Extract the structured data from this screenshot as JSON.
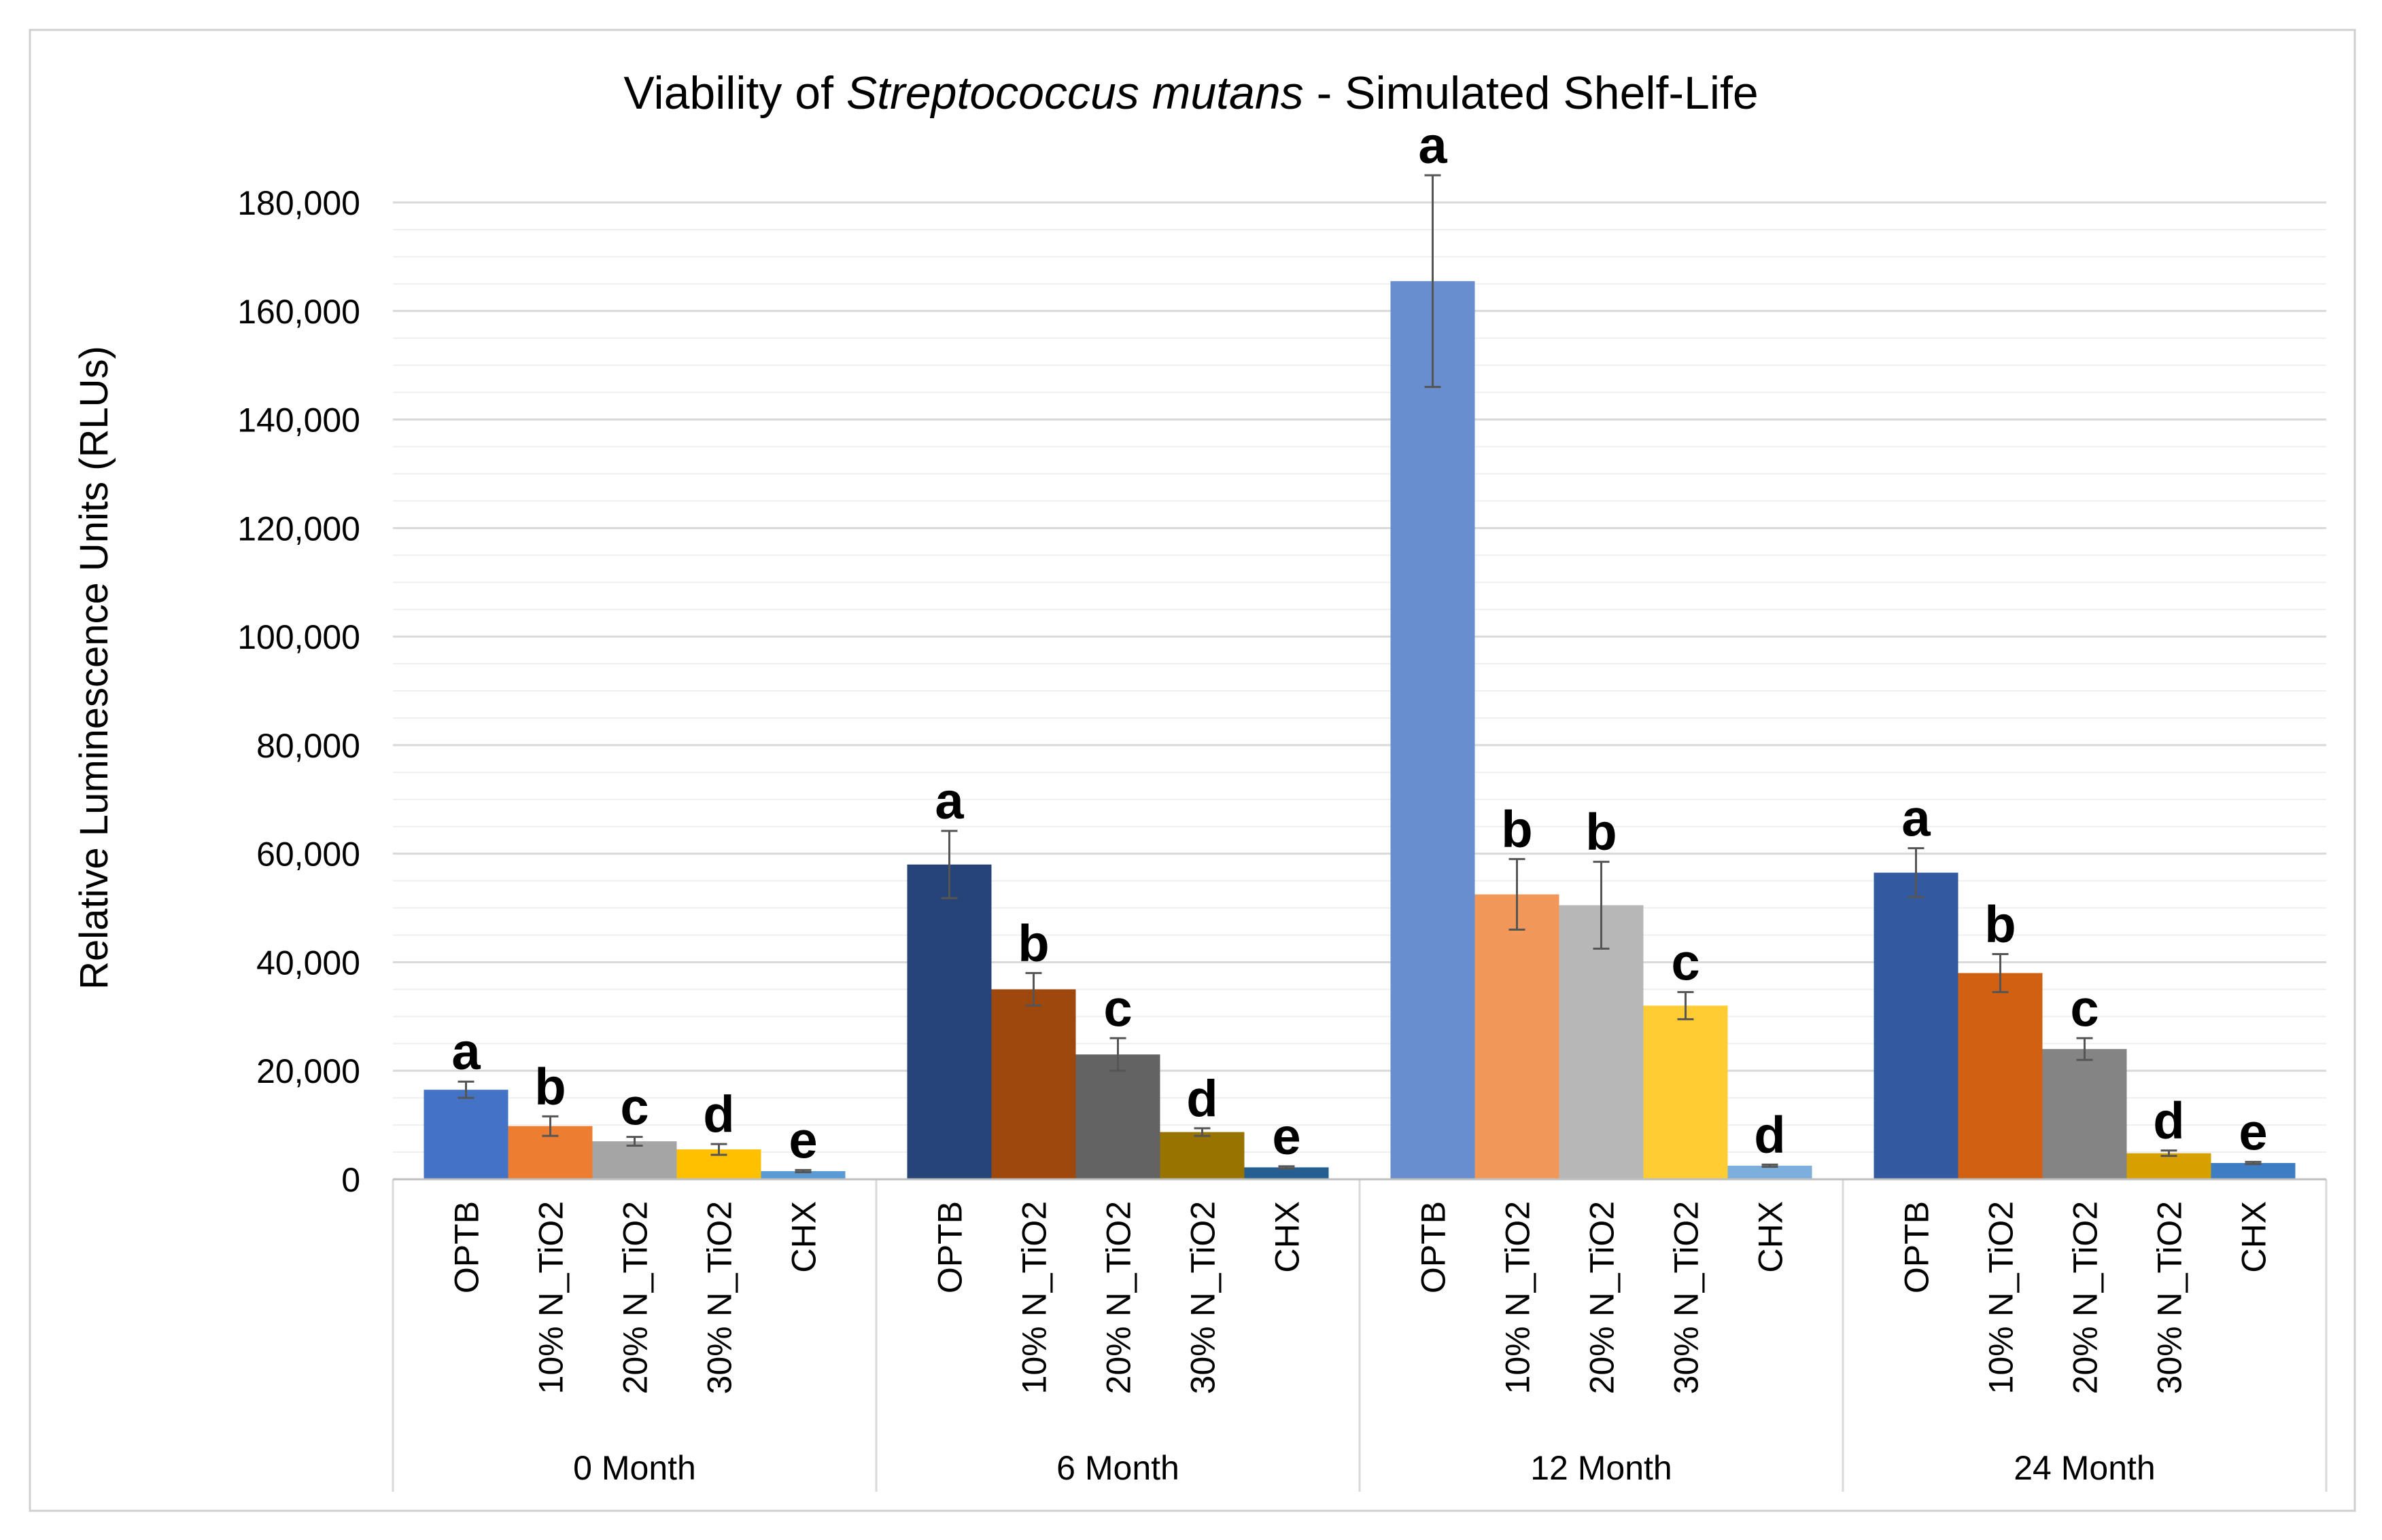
{
  "chart_data": {
    "type": "bar",
    "title": {
      "prefix": "Viability of ",
      "italic": "Streptococcus mutans",
      "suffix": " - Simulated Shelf-Life"
    },
    "ylabel": "Relative Luminescence Units (RLUs)",
    "xlabel": "",
    "ylim": [
      0,
      180000
    ],
    "yticks": [
      0,
      20000,
      40000,
      60000,
      80000,
      100000,
      120000,
      140000,
      160000,
      180000
    ],
    "ytick_labels": [
      "0",
      "20,000",
      "40,000",
      "60,000",
      "80,000",
      "100,000",
      "120,000",
      "140,000",
      "160,000",
      "180,000"
    ],
    "grid": true,
    "legend": "none",
    "groups": [
      {
        "label": "0 Month",
        "bars": [
          {
            "category": "OPTB",
            "value": 16500,
            "error": 1500,
            "letter": "a",
            "color": "#4472C4"
          },
          {
            "category": "10% N_TiO2",
            "value": 9800,
            "error": 1800,
            "letter": "b",
            "color": "#ED7D31"
          },
          {
            "category": "20% N_TiO2",
            "value": 7000,
            "error": 800,
            "letter": "c",
            "color": "#A5A5A5"
          },
          {
            "category": "30% N_TiO2",
            "value": 5500,
            "error": 1000,
            "letter": "d",
            "color": "#FFC000"
          },
          {
            "category": "CHX",
            "value": 1500,
            "error": 200,
            "letter": "e",
            "color": "#5B9BD5"
          }
        ]
      },
      {
        "label": "6 Month",
        "bars": [
          {
            "category": "OPTB",
            "value": 58000,
            "error": 6200,
            "letter": "a",
            "color": "#264478"
          },
          {
            "category": "10% N_TiO2",
            "value": 35000,
            "error": 3000,
            "letter": "b",
            "color": "#9E480E"
          },
          {
            "category": "20% N_TiO2",
            "value": 23000,
            "error": 3000,
            "letter": "c",
            "color": "#636363"
          },
          {
            "category": "30% N_TiO2",
            "value": 8700,
            "error": 700,
            "letter": "d",
            "color": "#997300"
          },
          {
            "category": "CHX",
            "value": 2200,
            "error": 200,
            "letter": "e",
            "color": "#255E91"
          }
        ]
      },
      {
        "label": "12 Month",
        "bars": [
          {
            "category": "OPTB",
            "value": 165500,
            "error": 19500,
            "letter": "a",
            "color": "#698ED0"
          },
          {
            "category": "10% N_TiO2",
            "value": 52500,
            "error": 6500,
            "letter": "b",
            "color": "#F1975A"
          },
          {
            "category": "20% N_TiO2",
            "value": 50500,
            "error": 8000,
            "letter": "b",
            "color": "#B7B7B7"
          },
          {
            "category": "30% N_TiO2",
            "value": 32000,
            "error": 2500,
            "letter": "c",
            "color": "#FFCD33"
          },
          {
            "category": "CHX",
            "value": 2500,
            "error": 200,
            "letter": "d",
            "color": "#7CAFDD"
          }
        ]
      },
      {
        "label": "24 Month",
        "bars": [
          {
            "category": "OPTB",
            "value": 56500,
            "error": 4500,
            "letter": "a",
            "color": "#335AA1"
          },
          {
            "category": "10% N_TiO2",
            "value": 38000,
            "error": 3500,
            "letter": "b",
            "color": "#D26012"
          },
          {
            "category": "20% N_TiO2",
            "value": 24000,
            "error": 2000,
            "letter": "c",
            "color": "#848484"
          },
          {
            "category": "30% N_TiO2",
            "value": 4800,
            "error": 500,
            "letter": "d",
            "color": "#D5A000"
          },
          {
            "category": "CHX",
            "value": 3000,
            "error": 200,
            "letter": "e",
            "color": "#3C7DC4"
          }
        ]
      }
    ]
  }
}
